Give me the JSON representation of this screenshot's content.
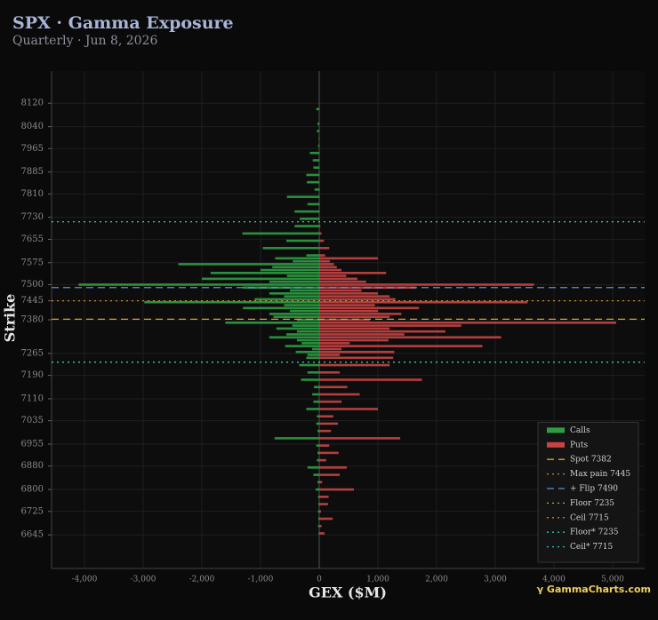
{
  "chart_data": {
    "type": "hbar",
    "title": "SPX · Gamma Exposure",
    "subtitle": "Quarterly · Jun 8, 2026",
    "x_label": "GEX ($M)",
    "y_label": "Strike",
    "watermark": "γ GammaCharts.com",
    "legend_position": "lower right",
    "grid": true,
    "xlim": [
      -4560,
      5545
    ],
    "xticks": [
      {
        "value": -4000,
        "label": "-4,000"
      },
      {
        "value": -3000,
        "label": "-3,000"
      },
      {
        "value": -2000,
        "label": "-2,000"
      },
      {
        "value": -1000,
        "label": "-1,000"
      },
      0,
      {
        "value": 1000,
        "label": "1,000"
      },
      {
        "value": 2000,
        "label": "2,000"
      },
      {
        "value": 3000,
        "label": "3,000"
      },
      {
        "value": 4000,
        "label": "4,000"
      },
      {
        "value": 5000,
        "label": "5,000"
      }
    ],
    "ylim": [
      6530,
      8230
    ],
    "yticks": [
      8120,
      8040,
      7965,
      7885,
      7810,
      7730,
      7655,
      7575,
      7500,
      7445,
      7380,
      7265,
      7190,
      7110,
      7035,
      6955,
      6880,
      6800,
      6725,
      6645
    ],
    "x": [
      6650,
      6675,
      6700,
      6725,
      6750,
      6775,
      6800,
      6825,
      6850,
      6875,
      6900,
      6925,
      6950,
      6975,
      7000,
      7025,
      7050,
      7075,
      7100,
      7125,
      7150,
      7175,
      7200,
      7225,
      7250,
      7260,
      7270,
      7280,
      7290,
      7300,
      7310,
      7320,
      7330,
      7340,
      7350,
      7360,
      7370,
      7380,
      7390,
      7400,
      7410,
      7420,
      7430,
      7440,
      7450,
      7460,
      7470,
      7480,
      7490,
      7500,
      7510,
      7520,
      7530,
      7540,
      7550,
      7560,
      7570,
      7580,
      7590,
      7600,
      7625,
      7650,
      7675,
      7700,
      7725,
      7750,
      7775,
      7800,
      7825,
      7850,
      7875,
      7900,
      7925,
      7950,
      7975,
      8000,
      8025,
      8050,
      8100
    ],
    "series": [
      {
        "name": "Calls",
        "color": "#2e9e44",
        "values": [
          -10,
          -20,
          -15,
          -20,
          -15,
          -20,
          -60,
          -30,
          -100,
          -200,
          -40,
          -30,
          -50,
          -760,
          -30,
          -50,
          -40,
          -220,
          -100,
          -120,
          -90,
          -310,
          -200,
          -340,
          -220,
          -200,
          -400,
          -120,
          -580,
          -300,
          -380,
          -850,
          -560,
          -380,
          -730,
          -460,
          -1600,
          -380,
          -780,
          -850,
          -500,
          -1300,
          -600,
          -2980,
          -1100,
          -600,
          -850,
          -500,
          -1300,
          -4100,
          -850,
          -2000,
          -550,
          -1850,
          -1000,
          -800,
          -2400,
          -450,
          -750,
          -220,
          -960,
          -560,
          -1310,
          -420,
          -330,
          -420,
          -200,
          -550,
          -80,
          -210,
          -220,
          -100,
          -110,
          -160,
          -20,
          -10,
          -40,
          -30,
          -50
        ]
      },
      {
        "name": "Puts",
        "color": "#c84444",
        "values": [
          90,
          40,
          230,
          30,
          150,
          160,
          590,
          50,
          350,
          470,
          120,
          330,
          170,
          1380,
          200,
          320,
          240,
          1000,
          380,
          690,
          480,
          1750,
          350,
          1200,
          1260,
          350,
          1280,
          380,
          2780,
          520,
          1180,
          3100,
          1450,
          2150,
          1200,
          2420,
          5060,
          860,
          1200,
          1400,
          1000,
          1700,
          950,
          3550,
          1300,
          1200,
          1000,
          720,
          1650,
          3660,
          800,
          650,
          460,
          1140,
          380,
          300,
          250,
          180,
          1000,
          100,
          170,
          80,
          40,
          20,
          10,
          10,
          10,
          10,
          10,
          5,
          5,
          5,
          5,
          5,
          5,
          5,
          5,
          5,
          5
        ]
      }
    ],
    "lines": [
      {
        "name": "Spot 7382",
        "value": 7382,
        "color": "#d9a320",
        "dash": "long"
      },
      {
        "name": "Max pain 7445",
        "value": 7445,
        "color": "#c98a2a",
        "dash": "dot"
      },
      {
        "name": "+ Flip 7490",
        "value": 7490,
        "color": "#5b8fe0",
        "dash": "long"
      },
      {
        "name": "Floor 7235",
        "value": 7235,
        "color": "#c9a62a",
        "dash": "dot"
      },
      {
        "name": "Ceil 7715",
        "value": 7715,
        "color": "#c9842a",
        "dash": "dot"
      },
      {
        "name": "Floor* 7235",
        "value": 7235,
        "color": "#2ec4b6",
        "dash": "dot"
      },
      {
        "name": "Ceil* 7715",
        "value": 7715,
        "color": "#2ec4b6",
        "dash": "dot"
      }
    ]
  }
}
